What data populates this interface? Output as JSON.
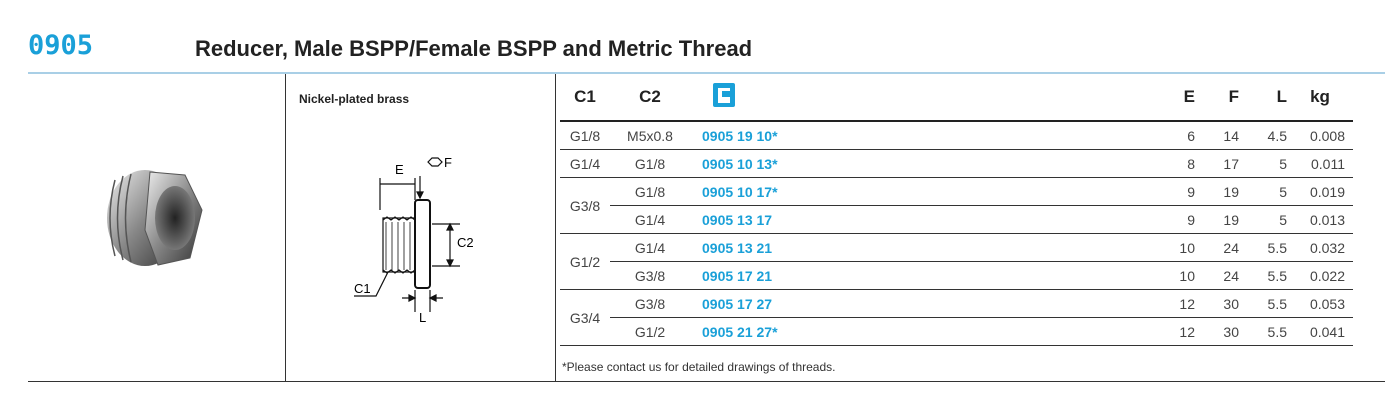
{
  "header": {
    "code": "0905",
    "title": "Reducer, Male BSPP/Female BSPP and Metric Thread"
  },
  "material": "Nickel-plated brass",
  "drawing_labels": {
    "e": "E",
    "f": "F",
    "c2": "C2",
    "c1": "C1",
    "l": "L"
  },
  "table": {
    "columns": [
      "C1",
      "C2",
      "E",
      "F",
      "L",
      "kg"
    ],
    "groups": [
      {
        "c1": "G1/8",
        "rows": [
          {
            "c2": "M5x0.8",
            "code": "0905 19 10*",
            "e": 6,
            "f": 14,
            "l": 4.5,
            "kg": 0.008
          }
        ]
      },
      {
        "c1": "G1/4",
        "rows": [
          {
            "c2": "G1/8",
            "code": "0905 10 13*",
            "e": 8,
            "f": 17,
            "l": 5,
            "kg": 0.011
          }
        ]
      },
      {
        "c1": "G3/8",
        "rows": [
          {
            "c2": "G1/8",
            "code": "0905 10 17*",
            "e": 9,
            "f": 19,
            "l": 5,
            "kg": 0.019
          },
          {
            "c2": "G1/4",
            "code": "0905 13 17",
            "e": 9,
            "f": 19,
            "l": 5,
            "kg": 0.013
          }
        ]
      },
      {
        "c1": "G1/2",
        "rows": [
          {
            "c2": "G1/4",
            "code": "0905 13 21",
            "e": 10,
            "f": 24,
            "l": 5.5,
            "kg": 0.032
          },
          {
            "c2": "G3/8",
            "code": "0905 17 21",
            "e": 10,
            "f": 24,
            "l": 5.5,
            "kg": 0.022
          }
        ]
      },
      {
        "c1": "G3/4",
        "rows": [
          {
            "c2": "G3/8",
            "code": "0905 17 27",
            "e": 12,
            "f": 30,
            "l": 5.5,
            "kg": 0.053
          },
          {
            "c2": "G1/2",
            "code": "0905 21 27*",
            "e": 12,
            "f": 30,
            "l": 5.5,
            "kg": 0.041
          }
        ]
      }
    ],
    "footnote": "*Please contact us for detailed drawings of threads."
  }
}
